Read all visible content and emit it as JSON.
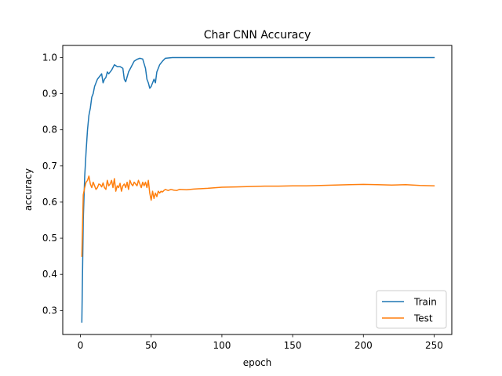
{
  "chart_data": {
    "type": "line",
    "title": "Char CNN Accuracy",
    "xlabel": "epoch",
    "ylabel": "accuracy",
    "xlim": [
      -12.5,
      262.5
    ],
    "ylim": [
      0.2335,
      1.0335
    ],
    "xticks": [
      0,
      50,
      100,
      150,
      200,
      250
    ],
    "yticks": [
      0.3,
      0.4,
      0.5,
      0.6,
      0.7,
      0.8,
      0.9,
      1.0
    ],
    "ytick_labels": [
      "0.3",
      "0.4",
      "0.5",
      "0.6",
      "0.7",
      "0.8",
      "0.9",
      "1.0"
    ],
    "legend_position": "lower-right",
    "grid": false,
    "series": [
      {
        "name": "Train",
        "color": "#1f77b4",
        "x": [
          1,
          2,
          3,
          4,
          5,
          6,
          7,
          8,
          9,
          10,
          12,
          14,
          15,
          16,
          17,
          18,
          19,
          20,
          22,
          24,
          26,
          28,
          30,
          31,
          32,
          34,
          36,
          38,
          40,
          42,
          44,
          46,
          47,
          48,
          49,
          50,
          52,
          53,
          54,
          56,
          58,
          60,
          65,
          70,
          100,
          150,
          200,
          250
        ],
        "values": [
          0.268,
          0.55,
          0.67,
          0.74,
          0.8,
          0.84,
          0.86,
          0.89,
          0.9,
          0.92,
          0.94,
          0.95,
          0.955,
          0.93,
          0.94,
          0.945,
          0.96,
          0.955,
          0.965,
          0.98,
          0.975,
          0.975,
          0.97,
          0.94,
          0.933,
          0.96,
          0.975,
          0.99,
          0.995,
          0.998,
          0.996,
          0.97,
          0.94,
          0.93,
          0.915,
          0.92,
          0.94,
          0.93,
          0.96,
          0.98,
          0.99,
          0.998,
          1.0,
          1.0,
          1.0,
          1.0,
          1.0,
          1.0
        ]
      },
      {
        "name": "Test",
        "color": "#ff7f0e",
        "x": [
          1,
          2,
          3,
          4,
          5,
          6,
          7,
          8,
          9,
          10,
          11,
          12,
          13,
          14,
          15,
          16,
          17,
          18,
          19,
          20,
          21,
          22,
          23,
          24,
          25,
          26,
          27,
          28,
          29,
          30,
          31,
          32,
          33,
          34,
          35,
          36,
          37,
          38,
          39,
          40,
          41,
          42,
          43,
          44,
          45,
          46,
          47,
          48,
          49,
          50,
          51,
          52,
          53,
          54,
          55,
          56,
          57,
          58,
          59,
          60,
          62,
          64,
          66,
          68,
          70,
          75,
          80,
          90,
          100,
          110,
          120,
          130,
          140,
          150,
          160,
          170,
          180,
          190,
          200,
          210,
          220,
          230,
          240,
          250
        ],
        "values": [
          0.45,
          0.62,
          0.64,
          0.655,
          0.66,
          0.672,
          0.65,
          0.64,
          0.655,
          0.645,
          0.635,
          0.64,
          0.65,
          0.648,
          0.642,
          0.653,
          0.64,
          0.635,
          0.66,
          0.645,
          0.65,
          0.66,
          0.64,
          0.665,
          0.63,
          0.645,
          0.64,
          0.652,
          0.63,
          0.645,
          0.65,
          0.64,
          0.655,
          0.635,
          0.66,
          0.65,
          0.645,
          0.655,
          0.65,
          0.645,
          0.66,
          0.65,
          0.64,
          0.655,
          0.645,
          0.655,
          0.64,
          0.66,
          0.625,
          0.605,
          0.63,
          0.61,
          0.625,
          0.615,
          0.63,
          0.625,
          0.63,
          0.628,
          0.632,
          0.635,
          0.632,
          0.635,
          0.633,
          0.632,
          0.635,
          0.634,
          0.636,
          0.638,
          0.641,
          0.642,
          0.643,
          0.644,
          0.644,
          0.645,
          0.645,
          0.646,
          0.647,
          0.648,
          0.649,
          0.648,
          0.647,
          0.648,
          0.646,
          0.645
        ]
      }
    ]
  }
}
